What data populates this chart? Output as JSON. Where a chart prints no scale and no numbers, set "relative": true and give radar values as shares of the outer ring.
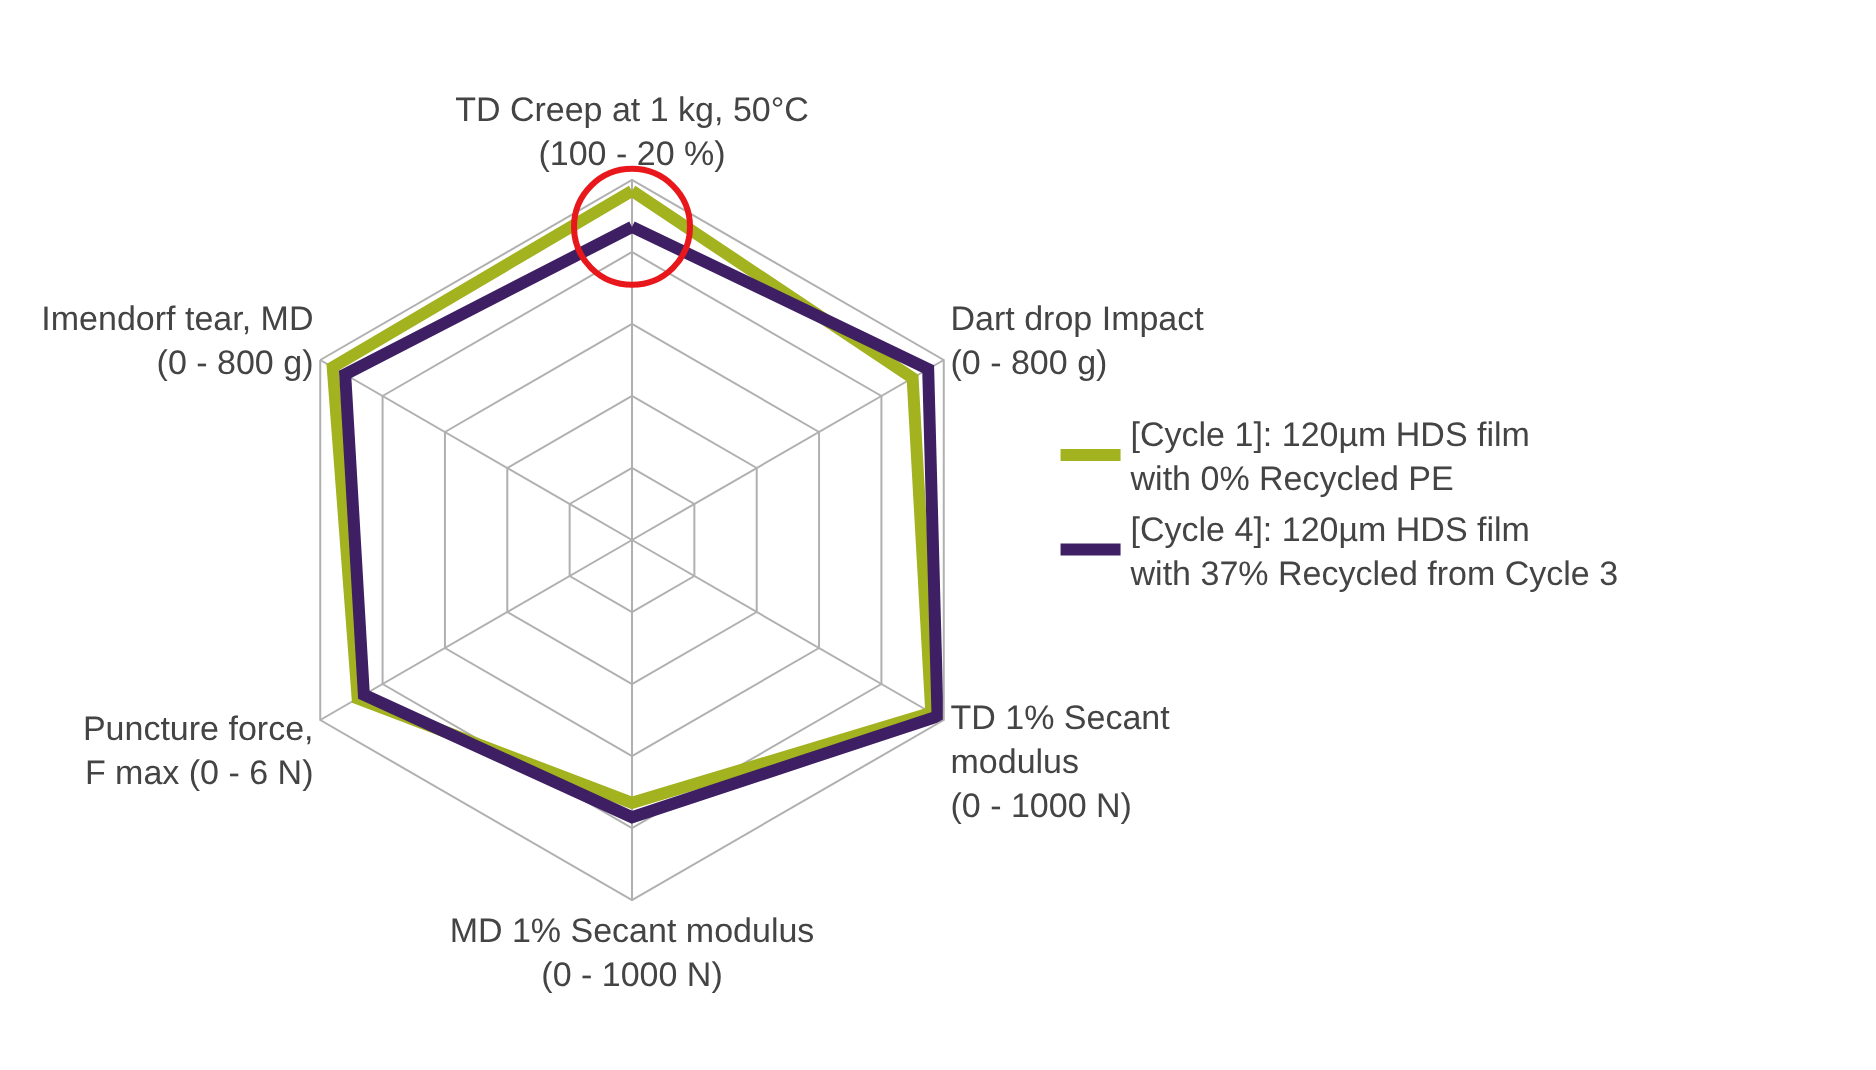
{
  "chart_data": {
    "type": "radar",
    "relative": true,
    "categories": [
      "TD Creep at 1 kg, 50°C\n(100 - 20 %)",
      "Dart drop Impact\n(0 - 800 g)",
      "TD 1% Secant\nmodulus\n(0 - 1000 N)",
      "MD 1% Secant modulus\n(0 - 1000 N)",
      "Puncture force,\nF max (0 - 6 N)",
      "Imendorf tear, MD\n(0 - 800 g)"
    ],
    "series": [
      {
        "name": "[Cycle 1]: 120µm HDS film\nwith 0% Recycled PE",
        "color": "#a3b21f",
        "values": [
          0.97,
          0.9,
          0.96,
          0.73,
          0.88,
          0.96
        ]
      },
      {
        "name": "[Cycle 4]: 120µm HDS film\nwith 37% Recycled from Cycle 3",
        "color": "#3f1f63",
        "values": [
          0.87,
          0.95,
          0.98,
          0.77,
          0.86,
          0.92
        ]
      }
    ],
    "legend": "right",
    "marker": "none",
    "line_style": "solid",
    "grid": true
  }
}
